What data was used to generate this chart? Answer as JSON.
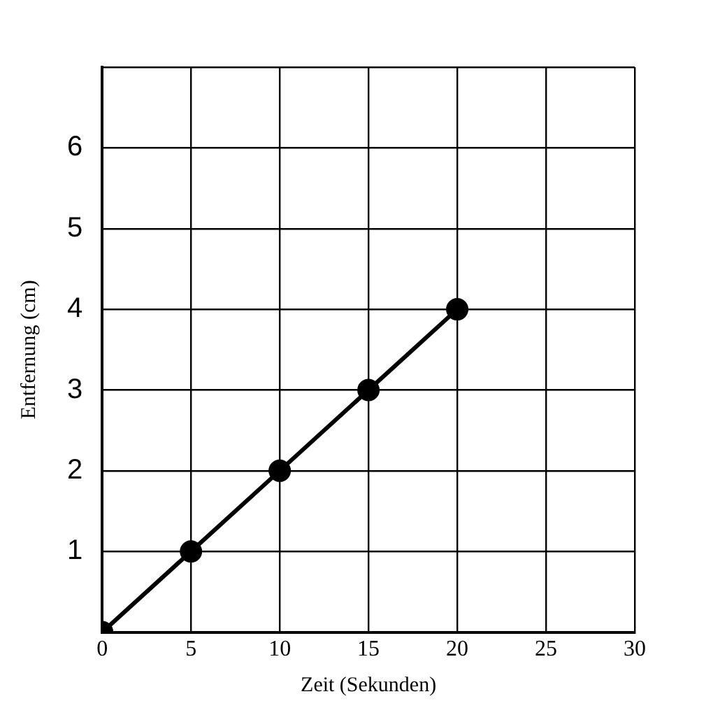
{
  "chart_data": {
    "type": "line",
    "xlabel": "Zeit (Sekunden)",
    "ylabel": "Entfernung (cm)",
    "x": [
      0,
      5,
      10,
      15,
      20
    ],
    "series": [
      {
        "color": "#000000",
        "values": [
          0,
          1,
          2,
          3,
          4
        ]
      }
    ],
    "xlim": [
      0,
      30
    ],
    "xticks": [
      0,
      5,
      10,
      15,
      20,
      25,
      30
    ],
    "ylim": [
      0,
      7
    ],
    "yticks": [
      {
        "value": 0,
        "label": null
      },
      1,
      2,
      3,
      4,
      5,
      6,
      {
        "value": 7,
        "label": null
      }
    ],
    "grid": true,
    "marker": "circle",
    "line_style": "solid",
    "legend": false
  }
}
